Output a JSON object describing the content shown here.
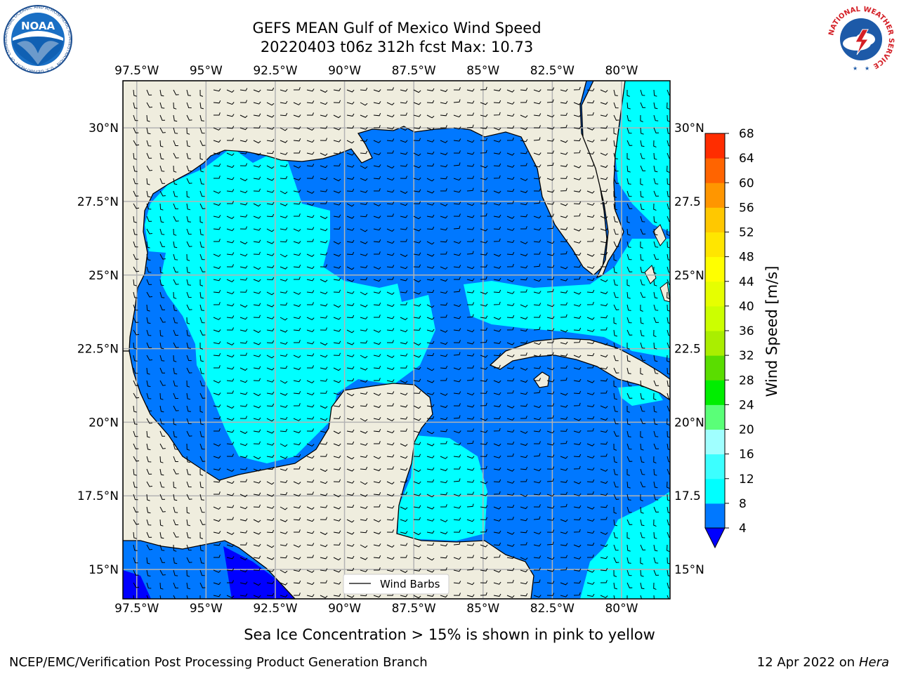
{
  "title": {
    "line1": "GEFS MEAN Gulf of Mexico Wind Speed",
    "line2": "20220403 t06z 312h fcst   Max: 10.73"
  },
  "map": {
    "lon_ticks": [
      "97.5°W",
      "95°W",
      "92.5°W",
      "90°W",
      "87.5°W",
      "85°W",
      "82.5°W",
      "80°W"
    ],
    "lon_values": [
      -97.5,
      -95,
      -92.5,
      -90,
      -87.5,
      -85,
      -82.5,
      -80
    ],
    "lat_ticks_left": [
      "30°N",
      "27.5°N",
      "25°N",
      "22.5°N",
      "20°N",
      "17.5°N",
      "15°N"
    ],
    "lat_ticks_right": [
      "30°N",
      "27.5",
      "25°N",
      "22.5",
      "20°N",
      "17.5",
      "15°N"
    ],
    "lat_values": [
      30,
      27.5,
      25,
      22.5,
      20,
      17.5,
      15
    ],
    "extent": {
      "lon_min": -98,
      "lon_max": -78.25,
      "lat_min": 14,
      "lat_max": 31.6
    },
    "land_color": "#efedde",
    "coast_color": "#000000",
    "grid_color": "#b3b3b3",
    "legend_label": "Wind Barbs"
  },
  "colorbar": {
    "label": "Wind Speed [m/s]",
    "ticks": [
      "68",
      "64",
      "60",
      "56",
      "52",
      "48",
      "44",
      "40",
      "36",
      "32",
      "28",
      "24",
      "20",
      "16",
      "12",
      "8",
      "4"
    ],
    "levels": [
      4,
      8,
      12,
      16,
      20,
      24,
      28,
      32,
      36,
      40,
      44,
      48,
      52,
      56,
      60,
      64,
      68
    ],
    "colors": [
      "#0078ff",
      "#00ffff",
      "#3cffff",
      "#a0ffff",
      "#5aff78",
      "#00ee00",
      "#5add00",
      "#aaee00",
      "#ccff00",
      "#e6ff00",
      "#ffff00",
      "#ffe600",
      "#ffc800",
      "#ff9600",
      "#ff6400",
      "#ff2d00"
    ],
    "under_color": "#0000ff"
  },
  "footer": {
    "note": "Sea Ice Concentration > 15% is shown in pink to yellow",
    "credit": "NCEP/EMC/Verification Post Processing Product Generation Branch",
    "date": "12 Apr 2022 on",
    "host": "Hera"
  },
  "logos": {
    "noaa_text": "NOAA",
    "noaa_ring": "NATIONAL OCEANIC AND ATMOSPHERIC ADMINISTRATION · U.S. DEPARTMENT OF COMMERCE ·",
    "nws_ring": "NATIONAL WEATHER SERVICE"
  }
}
